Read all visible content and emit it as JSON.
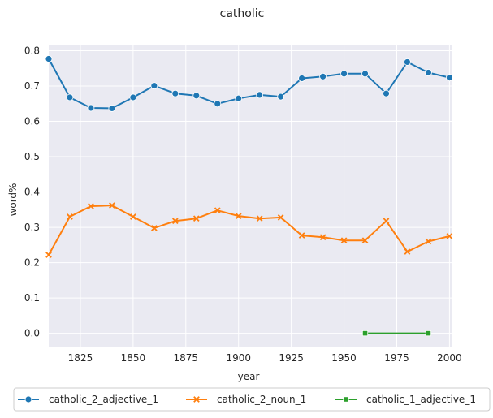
{
  "chart_data": {
    "type": "line",
    "title": "catholic",
    "xlabel": "year",
    "ylabel": "word%",
    "xlim": [
      1810,
      2001
    ],
    "ylim": [
      -0.04,
      0.815
    ],
    "xticks": [
      1825,
      1850,
      1875,
      1900,
      1925,
      1950,
      1975,
      2000
    ],
    "yticks": [
      0.0,
      0.1,
      0.2,
      0.3,
      0.4,
      0.5,
      0.6,
      0.7,
      0.8
    ],
    "xtick_labels": [
      "1825",
      "1850",
      "1875",
      "1900",
      "1925",
      "1950",
      "1975",
      "2000"
    ],
    "ytick_labels": [
      "0.0",
      "0.1",
      "0.2",
      "0.3",
      "0.4",
      "0.5",
      "0.6",
      "0.7",
      "0.8"
    ],
    "grid": true,
    "legend_position": "bottom",
    "background": "#eaeaf2",
    "series": [
      {
        "name": "catholic_2_adjective_1",
        "color": "#1f77b4",
        "marker": "circle",
        "x": [
          1810,
          1820,
          1830,
          1840,
          1850,
          1860,
          1870,
          1880,
          1890,
          1900,
          1910,
          1920,
          1930,
          1940,
          1950,
          1960,
          1970,
          1980,
          1990,
          2000
        ],
        "y": [
          0.777,
          0.668,
          0.638,
          0.637,
          0.668,
          0.701,
          0.679,
          0.673,
          0.65,
          0.665,
          0.675,
          0.67,
          0.722,
          0.727,
          0.735,
          0.735,
          0.679,
          0.768,
          0.738,
          0.724
        ]
      },
      {
        "name": "catholic_2_noun_1",
        "color": "#ff7f0e",
        "marker": "x",
        "x": [
          1810,
          1820,
          1830,
          1840,
          1850,
          1860,
          1870,
          1880,
          1890,
          1900,
          1910,
          1920,
          1930,
          1940,
          1950,
          1960,
          1970,
          1980,
          1990,
          2000
        ],
        "y": [
          0.222,
          0.33,
          0.36,
          0.362,
          0.33,
          0.298,
          0.318,
          0.325,
          0.348,
          0.332,
          0.325,
          0.328,
          0.277,
          0.272,
          0.263,
          0.263,
          0.318,
          0.231,
          0.26,
          0.275
        ]
      },
      {
        "name": "catholic_1_adjective_1",
        "color": "#2ca02c",
        "marker": "square",
        "x": [
          1960,
          1990
        ],
        "y": [
          0.0,
          0.0
        ]
      }
    ]
  }
}
